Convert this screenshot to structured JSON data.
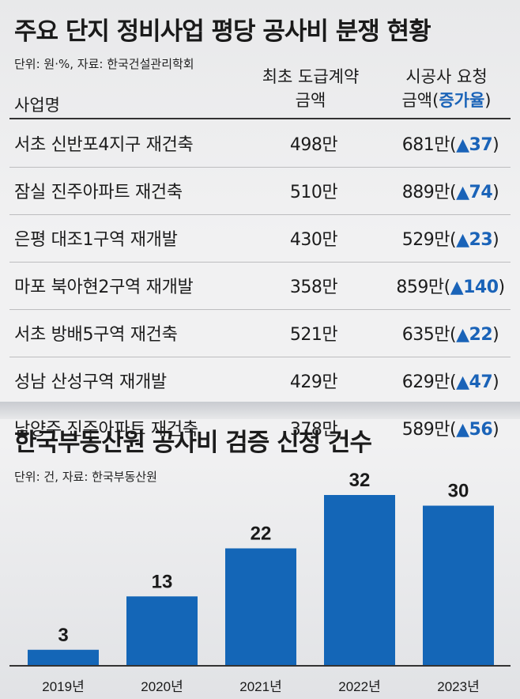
{
  "table": {
    "title": "주요 단지 정비사업 평당 공사비 분쟁 현황",
    "unit_source": "단위: 원·%, 자료: 한국건설관리학회",
    "header": {
      "name": "사업명",
      "initial_line1": "최초 도급계약",
      "initial_line2": "금액",
      "requested_line1": "시공사 요청",
      "requested_line2_prefix": "금액(",
      "requested_line2_accent": "증가율",
      "requested_line2_suffix": ")"
    },
    "rows": [
      {
        "name": "서초 신반포4지구 재건축",
        "initial": "498만",
        "requested": "681만(",
        "increase": "▲37",
        "close": ")"
      },
      {
        "name": "잠실 진주아파트 재건축",
        "initial": "510만",
        "requested": "889만(",
        "increase": "▲74",
        "close": ")"
      },
      {
        "name": "은평 대조1구역 재개발",
        "initial": "430만",
        "requested": "529만(",
        "increase": "▲23",
        "close": ")"
      },
      {
        "name": "마포 북아현2구역 재개발",
        "initial": "358만",
        "requested": "859만(",
        "increase": "▲140",
        "close": ")"
      },
      {
        "name": "서초 방배5구역 재건축",
        "initial": "521만",
        "requested": "635만(",
        "increase": "▲22",
        "close": ")"
      },
      {
        "name": "성남 산성구역 재개발",
        "initial": "429만",
        "requested": "629만(",
        "increase": "▲47",
        "close": ")"
      },
      {
        "name": "남양주 진주아파트 재건축",
        "initial": "378만",
        "requested": "589만(",
        "increase": "▲56",
        "close": ")"
      }
    ]
  },
  "colors": {
    "bar": "#1466b7",
    "accent": "#1a63b8",
    "background": "#f1f1f2"
  },
  "chart_data": {
    "type": "bar",
    "title": "한국부동산원 공사비 검증 신청 건수",
    "subtitle": "단위: 건, 자료: 한국부동산원",
    "categories": [
      "2019년",
      "2020년",
      "2021년",
      "2022년",
      "2023년"
    ],
    "values": [
      3,
      13,
      22,
      32,
      30
    ],
    "data_labels": [
      "3",
      "13",
      "22",
      "32",
      "30"
    ],
    "ylim": [
      0,
      32
    ],
    "grid": false,
    "legend": "none"
  }
}
